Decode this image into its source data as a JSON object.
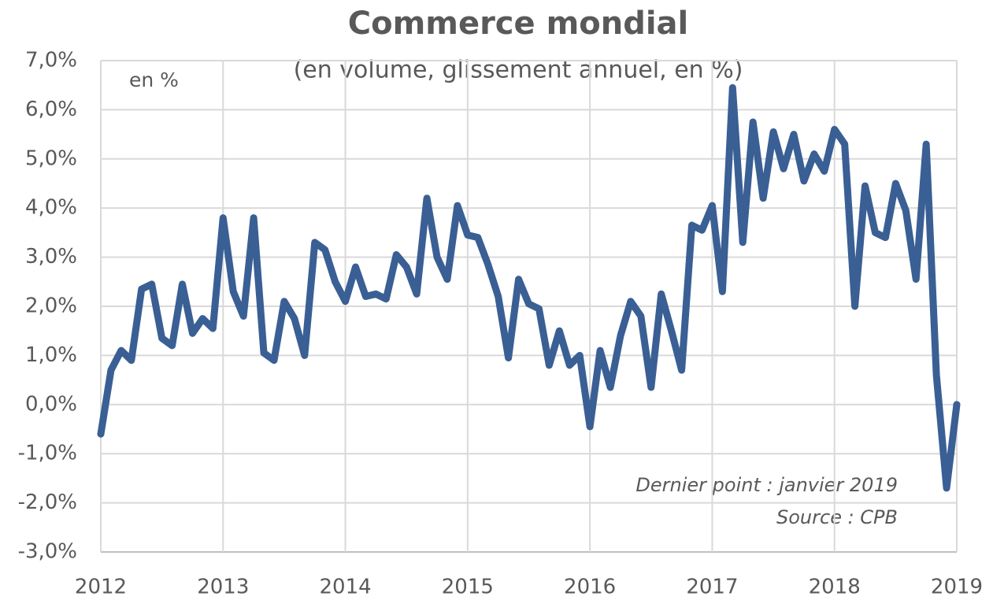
{
  "chart_data": {
    "type": "line",
    "title": "Commerce mondial",
    "subtitle": "(en volume, glissement annuel, en %)",
    "y_label": "en %",
    "annotations": [
      "Dernier point : janvier 2019",
      "Source : CPB"
    ],
    "categories": [
      "2012",
      null,
      null,
      null,
      null,
      null,
      null,
      null,
      null,
      null,
      null,
      null,
      "2013",
      null,
      null,
      null,
      null,
      null,
      null,
      null,
      null,
      null,
      null,
      null,
      "2014",
      null,
      null,
      null,
      null,
      null,
      null,
      null,
      null,
      null,
      null,
      null,
      "2015",
      null,
      null,
      null,
      null,
      null,
      null,
      null,
      null,
      null,
      null,
      null,
      "2016",
      null,
      null,
      null,
      null,
      null,
      null,
      null,
      null,
      null,
      null,
      null,
      "2017",
      null,
      null,
      null,
      null,
      null,
      null,
      null,
      null,
      null,
      null,
      null,
      "2018",
      null,
      null,
      null,
      null,
      null,
      null,
      null,
      null,
      null,
      null,
      null,
      "2019"
    ],
    "series": [
      {
        "name": "Commerce mondial",
        "color": "#3a5f94",
        "values": [
          -0.6,
          0.7,
          1.1,
          0.9,
          2.35,
          2.45,
          1.35,
          1.2,
          2.45,
          1.45,
          1.75,
          1.55,
          3.8,
          2.3,
          1.8,
          3.8,
          1.05,
          0.9,
          2.1,
          1.75,
          1.0,
          3.3,
          3.15,
          2.5,
          2.1,
          2.8,
          2.2,
          2.25,
          2.15,
          3.05,
          2.8,
          2.25,
          4.2,
          3.0,
          2.55,
          4.05,
          3.45,
          3.4,
          2.85,
          2.2,
          0.95,
          2.55,
          2.05,
          1.95,
          0.8,
          1.5,
          0.8,
          1.0,
          -0.45,
          1.1,
          0.35,
          1.4,
          2.1,
          1.8,
          0.35,
          2.25,
          1.5,
          0.7,
          3.65,
          3.55,
          4.05,
          2.3,
          6.45,
          3.3,
          5.75,
          4.2,
          5.55,
          4.8,
          5.5,
          4.55,
          5.1,
          4.75,
          5.6,
          5.3,
          2.0,
          4.45,
          3.5,
          3.4,
          4.5,
          3.95,
          2.55,
          5.3,
          0.6,
          -1.7,
          0.0
        ]
      }
    ],
    "ylim": [
      -3,
      7
    ],
    "yticks": [
      {
        "value": -3,
        "label": "-3,0%"
      },
      {
        "value": -2,
        "label": "-2,0%"
      },
      {
        "value": -1,
        "label": "-1,0%"
      },
      {
        "value": 0,
        "label": "0,0%"
      },
      {
        "value": 1,
        "label": "1,0%"
      },
      {
        "value": 2,
        "label": "2,0%"
      },
      {
        "value": 3,
        "label": "3,0%"
      },
      {
        "value": 4,
        "label": "4,0%"
      },
      {
        "value": 5,
        "label": "5,0%"
      },
      {
        "value": 6,
        "label": "6,0%"
      },
      {
        "value": 7,
        "label": "7,0%"
      }
    ],
    "grid": true
  }
}
